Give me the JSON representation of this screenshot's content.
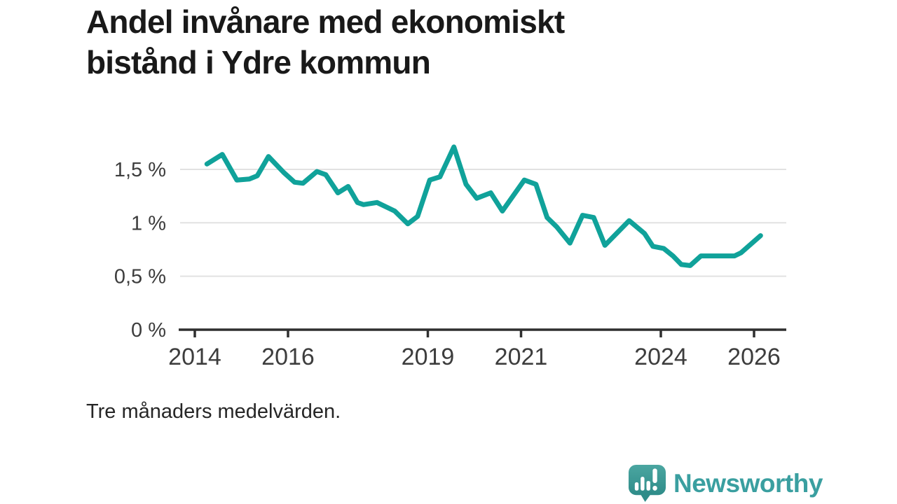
{
  "header": {
    "title_line1": "Andel invånare med ekonomiskt",
    "title_line2": "bistånd i Ydre kommun"
  },
  "footnote": "Tre månaders medelvärden.",
  "branding": {
    "logo_text": "Newsworthy",
    "logo_icon": "newsworthy-speech-bubble-bar-chart-icon",
    "brand_color": "#3a9fa0"
  },
  "chart_data": {
    "type": "line",
    "title": "Andel invånare med ekonomiskt bistånd i Ydre kommun",
    "subtitle": "Tre månaders medelvärden.",
    "unit": "%",
    "grid": "horizontal",
    "legend": "none",
    "colors": {
      "line": "#10a29a",
      "grid": "#e2e2e2",
      "axis": "#2f2f2f",
      "tick_label": "#3d3d3d"
    },
    "xlim": [
      2013.68,
      2026.69
    ],
    "ylim": [
      0,
      1.8
    ],
    "x_ticks": [
      {
        "label": "2014",
        "value": 2014
      },
      {
        "label": "2016",
        "value": 2016
      },
      {
        "label": "2019",
        "value": 2019
      },
      {
        "label": "2021",
        "value": 2021
      },
      {
        "label": "2024",
        "value": 2024
      },
      {
        "label": "2026",
        "value": 2026
      }
    ],
    "y_ticks": [
      {
        "label": "0 %",
        "value": 0
      },
      {
        "label": "0,5 %",
        "value": 0.5
      },
      {
        "label": "1 %",
        "value": 1
      },
      {
        "label": "1,5 %",
        "value": 1.5
      }
    ],
    "series": [
      {
        "name": "Andel invånare med ekonomiskt bistånd",
        "color": "#10a29a",
        "points": [
          {
            "x": 2014.26,
            "y": 1.55
          },
          {
            "x": 2014.59,
            "y": 1.64
          },
          {
            "x": 2014.9,
            "y": 1.4
          },
          {
            "x": 2015.17,
            "y": 1.41
          },
          {
            "x": 2015.34,
            "y": 1.44
          },
          {
            "x": 2015.58,
            "y": 1.62
          },
          {
            "x": 2015.91,
            "y": 1.47
          },
          {
            "x": 2016.14,
            "y": 1.38
          },
          {
            "x": 2016.32,
            "y": 1.37
          },
          {
            "x": 2016.62,
            "y": 1.48
          },
          {
            "x": 2016.81,
            "y": 1.45
          },
          {
            "x": 2017.07,
            "y": 1.28
          },
          {
            "x": 2017.29,
            "y": 1.34
          },
          {
            "x": 2017.49,
            "y": 1.19
          },
          {
            "x": 2017.62,
            "y": 1.17
          },
          {
            "x": 2017.91,
            "y": 1.19
          },
          {
            "x": 2018.29,
            "y": 1.11
          },
          {
            "x": 2018.57,
            "y": 0.99
          },
          {
            "x": 2018.78,
            "y": 1.06
          },
          {
            "x": 2019.04,
            "y": 1.4
          },
          {
            "x": 2019.26,
            "y": 1.43
          },
          {
            "x": 2019.56,
            "y": 1.71
          },
          {
            "x": 2019.82,
            "y": 1.36
          },
          {
            "x": 2020.05,
            "y": 1.23
          },
          {
            "x": 2020.35,
            "y": 1.28
          },
          {
            "x": 2020.6,
            "y": 1.11
          },
          {
            "x": 2021.07,
            "y": 1.4
          },
          {
            "x": 2021.32,
            "y": 1.36
          },
          {
            "x": 2021.56,
            "y": 1.05
          },
          {
            "x": 2021.77,
            "y": 0.96
          },
          {
            "x": 2022.05,
            "y": 0.81
          },
          {
            "x": 2022.32,
            "y": 1.07
          },
          {
            "x": 2022.56,
            "y": 1.05
          },
          {
            "x": 2022.8,
            "y": 0.79
          },
          {
            "x": 2023.32,
            "y": 1.02
          },
          {
            "x": 2023.65,
            "y": 0.9
          },
          {
            "x": 2023.83,
            "y": 0.78
          },
          {
            "x": 2024.06,
            "y": 0.76
          },
          {
            "x": 2024.26,
            "y": 0.69
          },
          {
            "x": 2024.44,
            "y": 0.61
          },
          {
            "x": 2024.63,
            "y": 0.6
          },
          {
            "x": 2024.86,
            "y": 0.69
          },
          {
            "x": 2025.58,
            "y": 0.69
          },
          {
            "x": 2025.72,
            "y": 0.72
          },
          {
            "x": 2026.14,
            "y": 0.88
          }
        ]
      }
    ]
  }
}
